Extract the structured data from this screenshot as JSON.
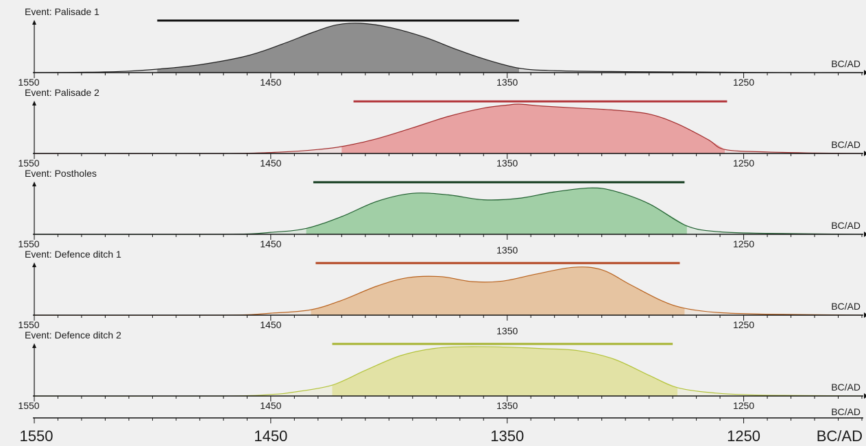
{
  "chart_data": {
    "type": "area",
    "x_axis_label": "BC/AD",
    "xlim": [
      1550,
      1200
    ],
    "major_ticks": [
      1550,
      1450,
      1350,
      1250
    ],
    "major_tick_labels": [
      "1550",
      "1450",
      "1350",
      "1250"
    ],
    "minor_tick_step": 10,
    "grid": false,
    "panels": [
      {
        "title": "Event: Palisade 1",
        "color": "#8e8e8e",
        "stroke": "#1e1e1e",
        "bar_color": "#111111",
        "range": [
          1498,
          1345
        ],
        "shaded": [
          1498,
          1345
        ],
        "points": [
          [
            1550,
            0
          ],
          [
            1525,
            0.01
          ],
          [
            1510,
            0.03
          ],
          [
            1498,
            0.07
          ],
          [
            1480,
            0.16
          ],
          [
            1460,
            0.34
          ],
          [
            1445,
            0.58
          ],
          [
            1432,
            0.82
          ],
          [
            1422,
            0.97
          ],
          [
            1412,
            1.0
          ],
          [
            1400,
            0.92
          ],
          [
            1385,
            0.72
          ],
          [
            1372,
            0.48
          ],
          [
            1360,
            0.28
          ],
          [
            1345,
            0.09
          ],
          [
            1330,
            0.04
          ],
          [
            1300,
            0.02
          ],
          [
            1260,
            0.01
          ],
          [
            1230,
            0.0
          ],
          [
            1200,
            0
          ]
        ]
      },
      {
        "title": "Event: Palisade 2",
        "color": "#e8a2a2",
        "stroke": "#a12c2c",
        "bar_color": "#b2353a",
        "range": [
          1415,
          1257
        ],
        "shaded": [
          1420,
          1258
        ],
        "points": [
          [
            1550,
            0
          ],
          [
            1470,
            0
          ],
          [
            1445,
            0.03
          ],
          [
            1430,
            0.08
          ],
          [
            1420,
            0.14
          ],
          [
            1405,
            0.3
          ],
          [
            1390,
            0.52
          ],
          [
            1375,
            0.75
          ],
          [
            1360,
            0.92
          ],
          [
            1350,
            0.98
          ],
          [
            1345,
            1.0
          ],
          [
            1335,
            0.96
          ],
          [
            1320,
            0.92
          ],
          [
            1305,
            0.88
          ],
          [
            1290,
            0.8
          ],
          [
            1278,
            0.6
          ],
          [
            1265,
            0.28
          ],
          [
            1258,
            0.08
          ],
          [
            1240,
            0.03
          ],
          [
            1220,
            0.01
          ],
          [
            1200,
            0
          ]
        ]
      },
      {
        "title": "Event: Postholes",
        "color": "#a1cfa6",
        "stroke": "#1e5e2e",
        "bar_color": "#113a1c",
        "range": [
          1432,
          1275
        ],
        "shaded": [
          1435,
          1274
        ],
        "points": [
          [
            1550,
            0
          ],
          [
            1470,
            0
          ],
          [
            1450,
            0.04
          ],
          [
            1435,
            0.12
          ],
          [
            1420,
            0.36
          ],
          [
            1405,
            0.67
          ],
          [
            1390,
            0.83
          ],
          [
            1375,
            0.8
          ],
          [
            1360,
            0.7
          ],
          [
            1345,
            0.73
          ],
          [
            1330,
            0.86
          ],
          [
            1315,
            0.94
          ],
          [
            1305,
            0.88
          ],
          [
            1290,
            0.62
          ],
          [
            1274,
            0.17
          ],
          [
            1260,
            0.05
          ],
          [
            1240,
            0.02
          ],
          [
            1220,
            0.01
          ],
          [
            1200,
            0
          ]
        ]
      },
      {
        "title": "Event: Defence ditch 1",
        "color": "#e6c4a1",
        "stroke": "#b8621e",
        "bar_color": "#b2431e",
        "range": [
          1431,
          1277
        ],
        "shaded": [
          1433,
          1275
        ],
        "points": [
          [
            1550,
            0
          ],
          [
            1470,
            0
          ],
          [
            1450,
            0.04
          ],
          [
            1433,
            0.11
          ],
          [
            1420,
            0.3
          ],
          [
            1405,
            0.59
          ],
          [
            1392,
            0.76
          ],
          [
            1378,
            0.78
          ],
          [
            1365,
            0.68
          ],
          [
            1352,
            0.69
          ],
          [
            1338,
            0.83
          ],
          [
            1322,
            0.97
          ],
          [
            1310,
            0.92
          ],
          [
            1298,
            0.62
          ],
          [
            1285,
            0.3
          ],
          [
            1275,
            0.14
          ],
          [
            1260,
            0.05
          ],
          [
            1240,
            0.02
          ],
          [
            1220,
            0.01
          ],
          [
            1200,
            0
          ]
        ]
      },
      {
        "title": "Event: Defence ditch 2",
        "color": "#e2e2a5",
        "stroke": "#b3c33b",
        "bar_color": "#a6b330",
        "range": [
          1424,
          1280
        ],
        "shaded": [
          1424,
          1278
        ],
        "points": [
          [
            1550,
            0
          ],
          [
            1470,
            0
          ],
          [
            1450,
            0.03
          ],
          [
            1440,
            0.08
          ],
          [
            1424,
            0.22
          ],
          [
            1410,
            0.52
          ],
          [
            1395,
            0.82
          ],
          [
            1380,
            0.97
          ],
          [
            1365,
            1.0
          ],
          [
            1350,
            0.99
          ],
          [
            1335,
            0.96
          ],
          [
            1320,
            0.92
          ],
          [
            1305,
            0.75
          ],
          [
            1290,
            0.42
          ],
          [
            1278,
            0.17
          ],
          [
            1262,
            0.06
          ],
          [
            1245,
            0.02
          ],
          [
            1225,
            0.01
          ],
          [
            1200,
            0
          ]
        ]
      }
    ]
  }
}
